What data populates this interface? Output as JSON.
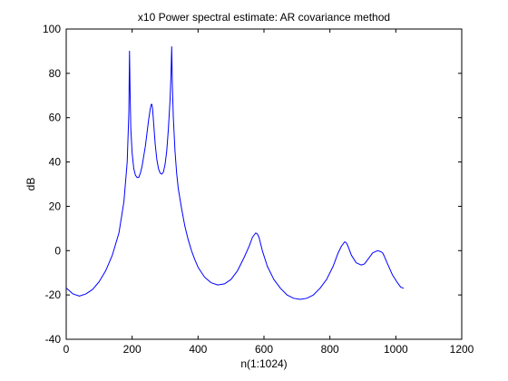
{
  "chart_data": {
    "type": "line",
    "title": "x10 Power spectral estimate: AR covariance method",
    "xlabel": "n(1:1024)",
    "ylabel": "dB",
    "xlim": [
      0,
      1200
    ],
    "ylim": [
      -40,
      100
    ],
    "xticks": [
      0,
      200,
      400,
      600,
      800,
      1000,
      1200
    ],
    "yticks": [
      -40,
      -20,
      0,
      20,
      40,
      60,
      80,
      100
    ],
    "grid": false,
    "series": [
      {
        "color": "#0000ff",
        "x": [
          1,
          20,
          40,
          60,
          80,
          100,
          120,
          140,
          160,
          175,
          185,
          190,
          192,
          194,
          196,
          200,
          205,
          210,
          215,
          220,
          225,
          230,
          240,
          245,
          250,
          255,
          258,
          260,
          262,
          265,
          270,
          275,
          280,
          285,
          290,
          295,
          300,
          305,
          310,
          315,
          318,
          320,
          322,
          325,
          330,
          335,
          340,
          350,
          360,
          370,
          380,
          390,
          400,
          420,
          440,
          460,
          480,
          500,
          520,
          540,
          555,
          565,
          575,
          580,
          585,
          595,
          610,
          630,
          650,
          670,
          690,
          710,
          730,
          750,
          770,
          790,
          810,
          825,
          835,
          845,
          850,
          855,
          865,
          880,
          895,
          905,
          915,
          930,
          945,
          955,
          960,
          965,
          975,
          990,
          1005,
          1015,
          1024
        ],
        "y": [
          -17,
          -19.5,
          -20.5,
          -19.5,
          -17.5,
          -14,
          -9,
          -2,
          8,
          22,
          40,
          62,
          90,
          70,
          55,
          44,
          37,
          34,
          33,
          33,
          35,
          38,
          47,
          53,
          59,
          64,
          66,
          66,
          64,
          58,
          48,
          41,
          37,
          35,
          34.5,
          35.5,
          39,
          45,
          55,
          68,
          80,
          92,
          75,
          60,
          45,
          35,
          28,
          19,
          11,
          5,
          0,
          -4,
          -7.5,
          -12,
          -14.5,
          -15.5,
          -15,
          -13,
          -9,
          -3,
          2,
          6,
          8,
          7.5,
          6,
          0,
          -7,
          -13,
          -17,
          -20,
          -21.5,
          -22,
          -21.5,
          -20,
          -17,
          -13,
          -7,
          -1,
          2,
          4,
          3.5,
          2,
          -2,
          -5.5,
          -6.5,
          -6,
          -4,
          -1,
          0,
          -0.5,
          -1,
          -2.5,
          -6,
          -11,
          -14.5,
          -16.5,
          -17
        ]
      }
    ]
  }
}
